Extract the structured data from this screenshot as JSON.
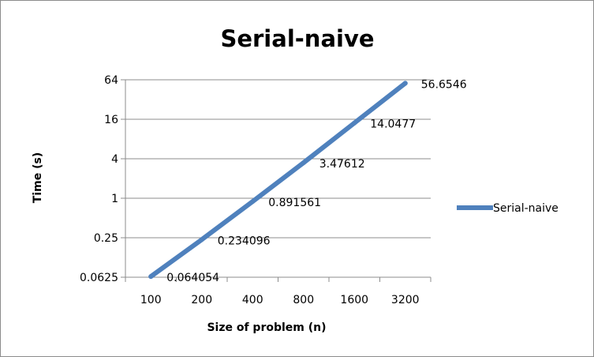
{
  "chart_data": {
    "type": "line",
    "title": "Serial-naive",
    "xlabel": "Size of problem (n)",
    "ylabel": "Time (s)",
    "x_scale": "log2",
    "y_scale": "log4",
    "categories": [
      "100",
      "200",
      "400",
      "800",
      "1600",
      "3200"
    ],
    "y_ticks": [
      "0.0625",
      "0.25",
      "1",
      "4",
      "16",
      "64"
    ],
    "ylim": [
      0.0625,
      64
    ],
    "grid": true,
    "legend_position": "right",
    "series": [
      {
        "name": "Serial-naive",
        "color": "#4f81bd",
        "x": [
          100,
          200,
          400,
          800,
          1600,
          3200
        ],
        "values": [
          0.064054,
          0.234096,
          0.891561,
          3.47612,
          14.0477,
          56.6546
        ],
        "labels": [
          "0.064054",
          "0.234096",
          "0.891561",
          "3.47612",
          "14.0477",
          "56.6546"
        ]
      }
    ]
  }
}
